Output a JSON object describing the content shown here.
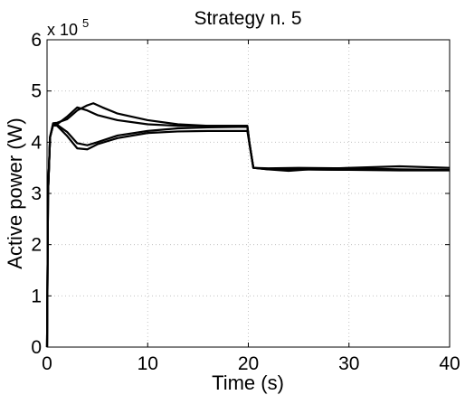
{
  "chart_data": {
    "type": "line",
    "title": "Strategy n. 5",
    "xlabel": "Time (s)",
    "ylabel": "Active power (W)",
    "y_multiplier": {
      "base": "x 10",
      "exponent": "5"
    },
    "xlim": [
      0,
      40
    ],
    "ylim": [
      0,
      6
    ],
    "x_ticks": [
      0,
      10,
      20,
      30,
      40
    ],
    "y_ticks": [
      0,
      1,
      2,
      3,
      4,
      5,
      6
    ],
    "grid": true,
    "series": [
      {
        "x": [
          0,
          0.1,
          0.3,
          0.6,
          1,
          2,
          3,
          4,
          4.6,
          5.5,
          7,
          10,
          13,
          16,
          19.9,
          20.1,
          20.5,
          22,
          25,
          30,
          35,
          40
        ],
        "y": [
          0,
          3.0,
          4.1,
          4.37,
          4.38,
          4.45,
          4.62,
          4.72,
          4.76,
          4.68,
          4.56,
          4.43,
          4.35,
          4.32,
          4.32,
          4.0,
          3.5,
          3.48,
          3.47,
          3.46,
          3.46,
          3.46
        ]
      },
      {
        "x": [
          0,
          0.1,
          0.3,
          0.6,
          1,
          2,
          3,
          4,
          5,
          7,
          10,
          13,
          16,
          19.9,
          20.1,
          20.5,
          22,
          25,
          30,
          35,
          40
        ],
        "y": [
          0,
          3.0,
          4.1,
          4.33,
          4.35,
          4.5,
          4.68,
          4.62,
          4.53,
          4.43,
          4.35,
          4.32,
          4.32,
          4.32,
          4.0,
          3.5,
          3.49,
          3.5,
          3.49,
          3.47,
          3.46
        ]
      },
      {
        "x": [
          0,
          0.1,
          0.3,
          0.6,
          1,
          2,
          3,
          4,
          5,
          7,
          10,
          13,
          16,
          19.9,
          20.1,
          20.5,
          22,
          24,
          26,
          30,
          35,
          40
        ],
        "y": [
          0,
          3.0,
          4.1,
          4.35,
          4.34,
          4.2,
          3.98,
          3.94,
          4.0,
          4.13,
          4.22,
          4.27,
          4.29,
          4.3,
          4.0,
          3.5,
          3.47,
          3.44,
          3.47,
          3.5,
          3.53,
          3.5
        ]
      },
      {
        "x": [
          0,
          0.1,
          0.3,
          0.6,
          1,
          2,
          3,
          4,
          5,
          7,
          10,
          13,
          16,
          19.9,
          20.1,
          20.5,
          22,
          25,
          30,
          35,
          40
        ],
        "y": [
          0,
          3.0,
          4.1,
          4.33,
          4.32,
          4.12,
          3.88,
          3.86,
          3.96,
          4.08,
          4.18,
          4.21,
          4.22,
          4.22,
          3.98,
          3.5,
          3.47,
          3.47,
          3.46,
          3.45,
          3.45
        ]
      }
    ]
  }
}
